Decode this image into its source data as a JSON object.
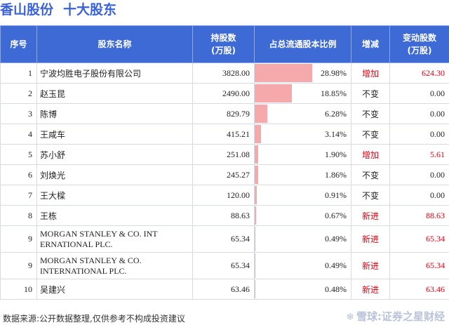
{
  "title": {
    "company": "香山股份",
    "subject": "十大股东"
  },
  "headers": {
    "idx": "序号",
    "name": "股东名称",
    "shares_line1": "持股数",
    "shares_line2": "(万股)",
    "ratio": "占总流通股本比例",
    "change_type": "增减",
    "change_line1": "变动股数",
    "change_line2": "(万股)"
  },
  "colors": {
    "header_bg": "#3e6ad6",
    "bar": "#f5a9ab",
    "title": "#3a62d8",
    "positive": "#e60012"
  },
  "chart_data": {
    "type": "table",
    "rows": [
      {
        "idx": "1",
        "name": "宁波均胜电子股份有限公司",
        "shares": "3828.00",
        "ratio": "28.98%",
        "ratio_value": 28.98,
        "change_type": "增加",
        "change": "624.30",
        "highlight": true
      },
      {
        "idx": "2",
        "name": "赵玉昆",
        "shares": "2490.00",
        "ratio": "18.85%",
        "ratio_value": 18.85,
        "change_type": "不变",
        "change": "0.00",
        "highlight": false
      },
      {
        "idx": "3",
        "name": "陈博",
        "shares": "829.79",
        "ratio": "6.28%",
        "ratio_value": 6.28,
        "change_type": "不变",
        "change": "0.00",
        "highlight": false
      },
      {
        "idx": "4",
        "name": "王咸车",
        "shares": "415.21",
        "ratio": "3.14%",
        "ratio_value": 3.14,
        "change_type": "不变",
        "change": "0.00",
        "highlight": false
      },
      {
        "idx": "5",
        "name": "苏小舒",
        "shares": "251.08",
        "ratio": "1.90%",
        "ratio_value": 1.9,
        "change_type": "增加",
        "change": "5.61",
        "highlight": true
      },
      {
        "idx": "6",
        "name": "刘焕光",
        "shares": "245.27",
        "ratio": "1.86%",
        "ratio_value": 1.86,
        "change_type": "不变",
        "change": "0.00",
        "highlight": false
      },
      {
        "idx": "7",
        "name": "王大樑",
        "shares": "120.00",
        "ratio": "0.91%",
        "ratio_value": 0.91,
        "change_type": "不变",
        "change": "0.00",
        "highlight": false
      },
      {
        "idx": "8",
        "name": "王栋",
        "shares": "88.63",
        "ratio": "0.67%",
        "ratio_value": 0.67,
        "change_type": "新进",
        "change": "88.63",
        "highlight": true
      },
      {
        "idx": "9",
        "name": "MORGAN STANLEY & CO. INT ERNATIONAL PLC.",
        "shares": "65.34",
        "ratio": "0.49%",
        "ratio_value": 0.49,
        "change_type": "新进",
        "change": "65.34",
        "highlight": true,
        "english": true
      },
      {
        "idx": "9",
        "name": "MORGAN STANLEY & CO. INTERNATIONAL PLC.",
        "shares": "65.34",
        "ratio": "0.49%",
        "ratio_value": 0.49,
        "change_type": "新进",
        "change": "65.34",
        "highlight": true,
        "english": true
      },
      {
        "idx": "10",
        "name": "吴建兴",
        "shares": "63.46",
        "ratio": "0.48%",
        "ratio_value": 0.48,
        "change_type": "新进",
        "change": "63.46",
        "highlight": true
      }
    ]
  },
  "footer": {
    "source": "数据来源:公开数据整理,仅供参考不构成投资建议"
  },
  "brand": {
    "icon": "snowball-icon",
    "text": "雪球:证券之星财经"
  },
  "watermark": {
    "text": "证券之星"
  }
}
